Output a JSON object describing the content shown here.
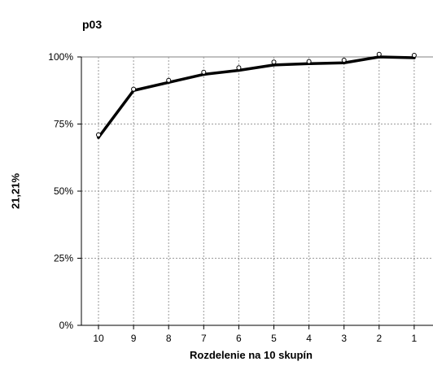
{
  "chart_data": {
    "type": "line",
    "title": "p03",
    "xlabel": "Rozdelenie na 10 skupín",
    "ylabel": "21,21%",
    "categories": [
      "10",
      "9",
      "8",
      "7",
      "6",
      "5",
      "4",
      "3",
      "2",
      "1"
    ],
    "ylim": [
      0,
      100
    ],
    "yticks": [
      "0%",
      "25%",
      "50%",
      "75%",
      "100%"
    ],
    "grid": true,
    "series": [
      {
        "style": "line",
        "color": "#000000",
        "values": [
          70,
          87.5,
          90.5,
          93.5,
          95,
          97,
          97.5,
          97.8,
          100,
          99.7
        ]
      },
      {
        "style": "markers",
        "color": "#000000",
        "values": [
          71,
          88,
          91.3,
          94.3,
          96,
          98.1,
          98.3,
          98.8,
          101,
          100.6
        ]
      }
    ]
  }
}
